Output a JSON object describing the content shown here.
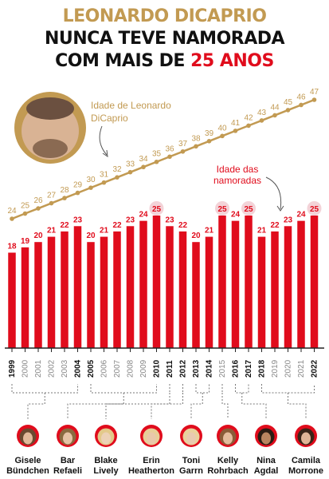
{
  "title": {
    "line1": "LEONARDO DICAPRIO",
    "line2": "NUNCA TEVE NAMORADA",
    "line3_pre": "COM MAIS DE ",
    "line3_highlight": "25 ANOS"
  },
  "annotations": {
    "leo_age_line1": "Idade de Leonardo",
    "leo_age_line2": "DiCaprio",
    "gf_age_line1": "Idade das",
    "gf_age_line2": "namoradas"
  },
  "colors": {
    "bar": "#e00c1c",
    "gold": "#c29a52",
    "highlight_circle": "#f3d3d8",
    "title_gold": "#c29a52"
  },
  "chart_data": {
    "type": "bar",
    "categories": [
      "1999",
      "2000",
      "2001",
      "2002",
      "2003",
      "2004",
      "2005",
      "2006",
      "2007",
      "2008",
      "2009",
      "2010",
      "2011",
      "2012",
      "2013",
      "2014",
      "2015",
      "2016",
      "2017",
      "2018",
      "2019",
      "2020",
      "2021",
      "2022"
    ],
    "bold_years": [
      "1999",
      "2004",
      "2005",
      "2010",
      "2011",
      "2012",
      "2013",
      "2014",
      "2016",
      "2017",
      "2018",
      "2022"
    ],
    "series": [
      {
        "name": "Idade das namoradas",
        "type": "bar",
        "values": [
          18,
          19,
          20,
          21,
          22,
          23,
          20,
          21,
          22,
          23,
          24,
          25,
          23,
          22,
          20,
          21,
          25,
          24,
          25,
          21,
          22,
          23,
          24,
          25
        ]
      },
      {
        "name": "Idade de Leonardo DiCaprio",
        "type": "line",
        "values": [
          24,
          25,
          26,
          27,
          28,
          29,
          30,
          31,
          32,
          33,
          34,
          35,
          36,
          37,
          38,
          39,
          40,
          41,
          42,
          43,
          44,
          45,
          46,
          47
        ]
      }
    ],
    "highlighted_value": 25
  },
  "girlfriends": [
    {
      "name_line1": "Gisele",
      "name_line2": "Bündchen",
      "years": [
        "1999",
        "2004"
      ],
      "icon": "portrait-gisele-bundchen"
    },
    {
      "name_line1": "Bar",
      "name_line2": "Refaeli",
      "years": [
        "2005",
        "2010"
      ],
      "icon": "portrait-bar-refaeli"
    },
    {
      "name_line1": "Blake",
      "name_line2": "Lively",
      "years": [
        "2011"
      ],
      "icon": "portrait-blake-lively"
    },
    {
      "name_line1": "Erin",
      "name_line2": "Heatherton",
      "years": [
        "2012"
      ],
      "icon": "portrait-erin-heatherton"
    },
    {
      "name_line1": "Toni",
      "name_line2": "Garrn",
      "years": [
        "2013",
        "2014"
      ],
      "icon": "portrait-toni-garrn"
    },
    {
      "name_line1": "Kelly",
      "name_line2": "Rohrbach",
      "years": [
        "2015"
      ],
      "icon": "portrait-kelly-rohrbach"
    },
    {
      "name_line1": "Nina",
      "name_line2": "Agdal",
      "years": [
        "2016",
        "2017"
      ],
      "icon": "portrait-nina-agdal"
    },
    {
      "name_line1": "Camila",
      "name_line2": "Morrone",
      "years": [
        "2018",
        "2022"
      ],
      "icon": "portrait-camila-morrone"
    }
  ]
}
